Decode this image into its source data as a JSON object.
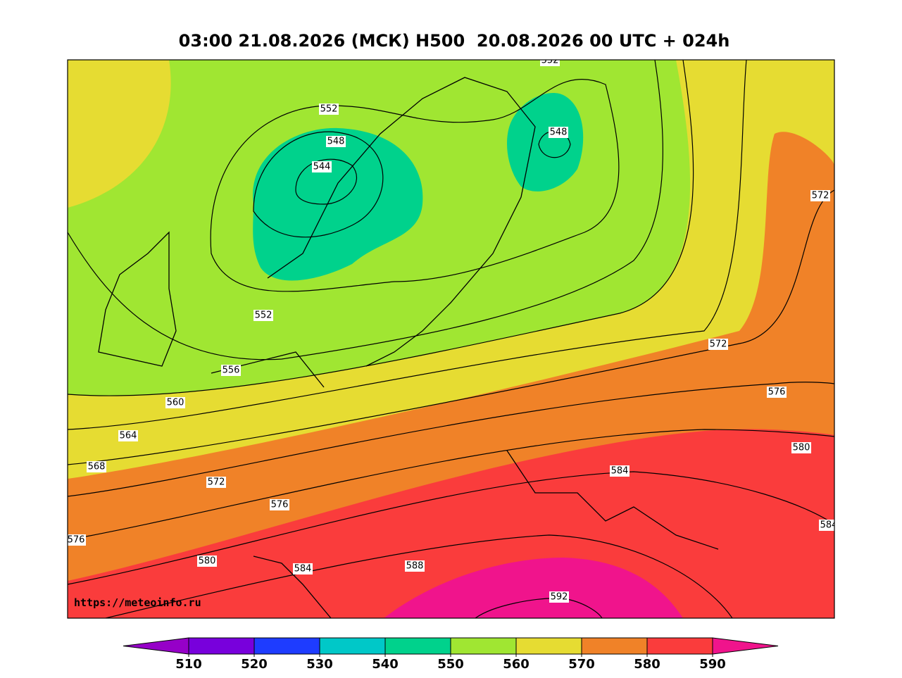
{
  "title": "03:00 21.08.2026 (МСК) H500  20.08.2026 00 UTC + 024h",
  "source": "https://meteoinfo.ru",
  "contour_labels": [
    552,
    552,
    548,
    544,
    548,
    572,
    552,
    572,
    556,
    576,
    560,
    564,
    580,
    568,
    584,
    572,
    576,
    584,
    576,
    580,
    584,
    588,
    592
  ],
  "colorbar": {
    "ticks": [
      510,
      520,
      530,
      540,
      550,
      560,
      570,
      580,
      590
    ],
    "colors": [
      "#9600c8",
      "#7800dc",
      "#1e3cff",
      "#00c8c8",
      "#00d28c",
      "#a0e632",
      "#e6dc32",
      "#f08228",
      "#fa3c3c",
      "#f0148c"
    ]
  }
}
